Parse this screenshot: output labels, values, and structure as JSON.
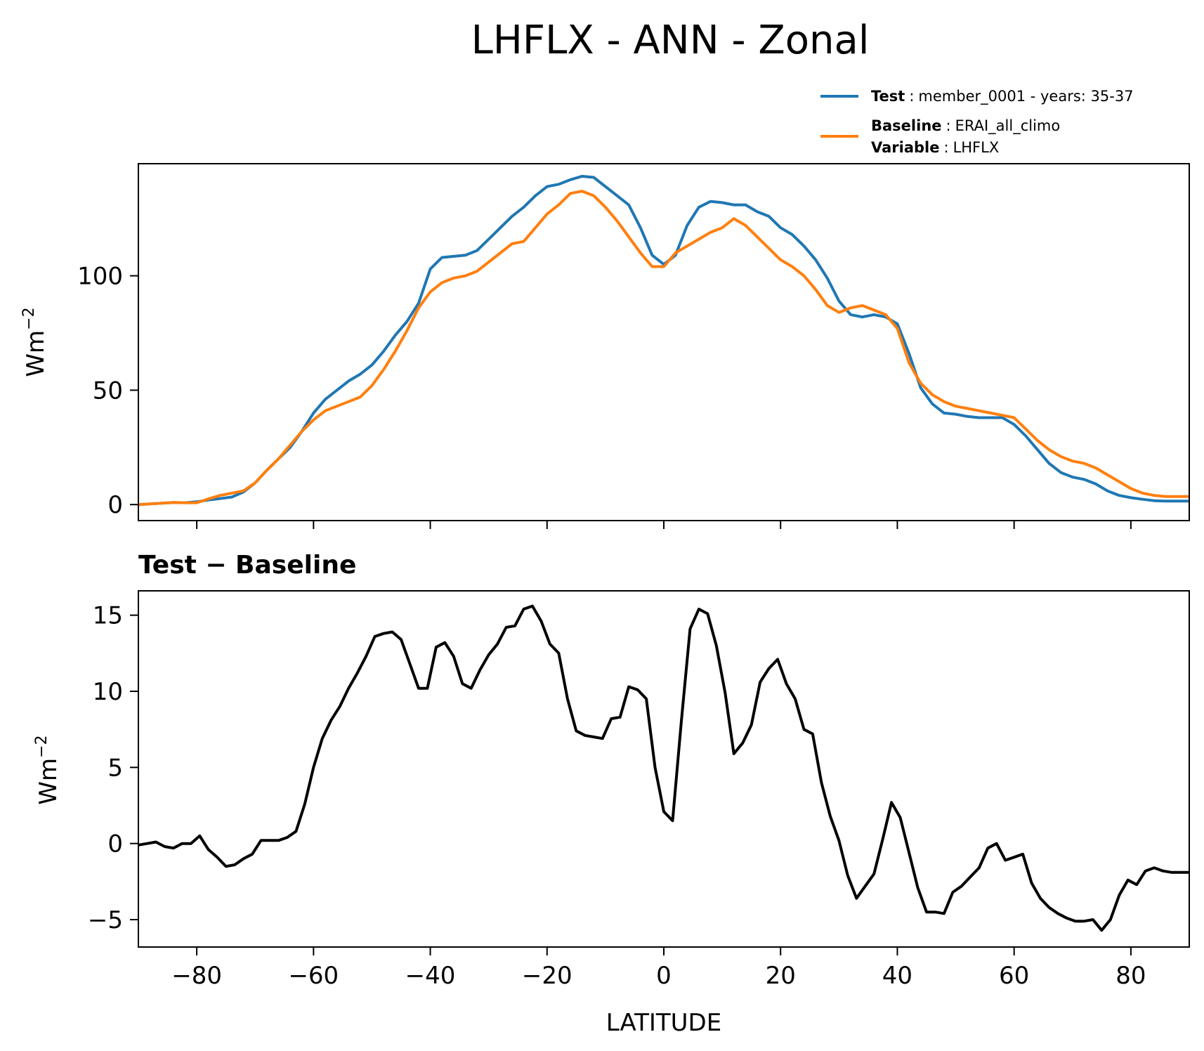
{
  "figure": {
    "title": "LHFLX - ANN - Zonal",
    "xlabel": "LATITUDE",
    "diff_title": "Test − Baseline"
  },
  "legend": {
    "test_key": "Test",
    "test_value": "member_0001 - years: 35-37",
    "baseline_key": "Baseline",
    "baseline_value": "ERAI_all_climo",
    "variable_key": "Variable",
    "variable_value": "LHFLX",
    "separator": ":"
  },
  "colors": {
    "test": "#1f77b4",
    "baseline": "#ff7f0e",
    "diff": "#000000"
  },
  "chart_data": [
    {
      "type": "line",
      "title": "",
      "xlabel": "",
      "ylabel": "Wm⁻²",
      "ylabel_base": "Wm",
      "ylabel_sup": "−2",
      "xlim": [
        -90,
        90
      ],
      "ylim": [
        -7,
        149
      ],
      "xticks": [
        -80,
        -60,
        -40,
        -20,
        0,
        20,
        40,
        60,
        80
      ],
      "xtick_labels_shown": false,
      "yticks": [
        0,
        50,
        100
      ],
      "ytick_labels": [
        "0",
        "50",
        "100"
      ],
      "series": [
        {
          "name": "Test",
          "x": [
            -90,
            -88,
            -86,
            -84,
            -82,
            -80,
            -78,
            -76,
            -74,
            -72,
            -70,
            -68,
            -66,
            -64,
            -62,
            -60,
            -58,
            -56,
            -54,
            -52,
            -50,
            -48,
            -46,
            -44,
            -42,
            -40,
            -38,
            -36,
            -34,
            -32,
            -30,
            -28,
            -26,
            -24,
            -22,
            -20,
            -18,
            -16,
            -14,
            -12,
            -10,
            -8,
            -6,
            -4,
            -2,
            0,
            2,
            4,
            6,
            8,
            10,
            12,
            14,
            16,
            18,
            20,
            22,
            24,
            26,
            28,
            30,
            32,
            34,
            36,
            38,
            40,
            42,
            44,
            46,
            48,
            50,
            52,
            54,
            56,
            58,
            60,
            62,
            64,
            66,
            68,
            70,
            72,
            74,
            76,
            78,
            80,
            82,
            84,
            86,
            88,
            90
          ],
          "values": [
            0,
            0.3,
            0.6,
            0.9,
            0.8,
            1.2,
            2,
            2.6,
            3.3,
            5.5,
            9.5,
            15,
            20,
            25,
            32,
            40,
            46,
            50,
            54,
            57,
            61,
            67,
            74,
            80,
            88,
            103,
            108,
            108.5,
            109,
            111,
            116,
            121,
            126,
            130,
            135,
            139,
            140,
            142,
            143.5,
            143,
            139,
            135,
            131,
            121,
            109,
            105,
            109,
            122,
            130,
            132.5,
            132,
            131,
            131,
            128,
            126,
            121,
            118,
            113,
            107,
            99,
            89,
            83,
            82,
            83,
            82,
            79,
            66,
            51,
            44,
            40,
            39.5,
            38.5,
            38,
            38,
            38,
            35,
            30,
            24,
            18,
            14,
            12,
            11,
            9,
            6,
            4,
            3,
            2.3,
            1.7,
            1.5,
            1.5,
            1.5
          ]
        },
        {
          "name": "Baseline",
          "x": [
            -90,
            -88,
            -86,
            -84,
            -82,
            -80,
            -78,
            -76,
            -74,
            -72,
            -70,
            -68,
            -66,
            -64,
            -62,
            -60,
            -58,
            -56,
            -54,
            -52,
            -50,
            -48,
            -46,
            -44,
            -42,
            -40,
            -38,
            -36,
            -34,
            -32,
            -30,
            -28,
            -26,
            -24,
            -22,
            -20,
            -18,
            -16,
            -14,
            -12,
            -10,
            -8,
            -6,
            -4,
            -2,
            0,
            2,
            4,
            6,
            8,
            10,
            12,
            14,
            16,
            18,
            20,
            22,
            24,
            26,
            28,
            30,
            32,
            34,
            36,
            38,
            40,
            42,
            44,
            46,
            48,
            50,
            52,
            54,
            56,
            58,
            60,
            62,
            64,
            66,
            68,
            70,
            72,
            74,
            76,
            78,
            80,
            82,
            84,
            86,
            88,
            90
          ],
          "values": [
            0,
            0.3,
            0.6,
            0.9,
            0.8,
            0.8,
            2.5,
            4,
            5,
            6,
            9.5,
            15,
            20,
            26,
            32,
            37,
            41,
            43,
            45,
            47,
            52,
            59,
            67,
            76,
            86,
            93,
            97,
            99,
            100,
            102,
            106,
            110,
            114,
            115,
            121,
            127,
            131,
            136,
            137,
            135,
            130,
            124,
            117,
            110,
            104,
            104,
            110,
            113,
            116,
            119,
            121,
            125,
            122,
            117,
            112,
            107,
            104,
            100,
            94,
            87,
            84,
            86,
            87,
            85,
            83,
            77,
            62,
            53,
            48,
            45,
            43,
            42,
            41,
            40,
            39,
            38,
            33,
            28,
            24,
            21,
            19,
            18,
            16,
            13,
            10,
            7,
            5,
            4,
            3.5,
            3.5,
            3.5
          ]
        }
      ]
    },
    {
      "type": "line",
      "title": "Test − Baseline",
      "xlabel": "LATITUDE",
      "ylabel": "Wm⁻²",
      "ylabel_base": "Wm",
      "ylabel_sup": "−2",
      "xlim": [
        -90,
        90
      ],
      "ylim": [
        -6.8,
        16.6
      ],
      "xticks": [
        -80,
        -60,
        -40,
        -20,
        0,
        20,
        40,
        60,
        80
      ],
      "xtick_labels": [
        "−80",
        "−60",
        "−40",
        "−20",
        "0",
        "20",
        "40",
        "60",
        "80"
      ],
      "yticks": [
        -5,
        0,
        5,
        10,
        15
      ],
      "ytick_labels": [
        "−5",
        "0",
        "5",
        "10",
        "15"
      ],
      "series": [
        {
          "name": "Test − Baseline",
          "x": [
            -90,
            -88.5,
            -87,
            -85.5,
            -84,
            -82.5,
            -81,
            -79.5,
            -78,
            -76.5,
            -75,
            -73.5,
            -72,
            -70.5,
            -69,
            -67.5,
            -66,
            -64.5,
            -63,
            -61.5,
            -60,
            -58.5,
            -57,
            -55.5,
            -54,
            -52.5,
            -51,
            -49.5,
            -48,
            -46.5,
            -45,
            -43.5,
            -42,
            -40.5,
            -39,
            -37.5,
            -36,
            -34.5,
            -33,
            -31.5,
            -30,
            -28.5,
            -27,
            -25.5,
            -24,
            -22.5,
            -21,
            -19.5,
            -18,
            -16.5,
            -15,
            -13.5,
            -12,
            -10.5,
            -9,
            -7.5,
            -6,
            -4.5,
            -3,
            -1.5,
            0,
            1.5,
            3,
            4.5,
            6,
            7.5,
            9,
            10.5,
            12,
            13.5,
            15,
            16.5,
            18,
            19.5,
            21,
            22.5,
            24,
            25.5,
            27,
            28.5,
            30,
            31.5,
            33,
            34.5,
            36,
            37.5,
            39,
            40.5,
            42,
            43.5,
            45,
            46.5,
            48,
            49.5,
            51,
            52.5,
            54,
            55.5,
            57,
            58.5,
            60,
            61.5,
            63,
            64.5,
            66,
            67.5,
            69,
            70.5,
            72,
            73.5,
            75,
            76.5,
            78,
            79.5,
            81,
            82.5,
            84,
            85.5,
            87,
            88.5,
            90
          ],
          "values": [
            -0.1,
            0,
            0.1,
            -0.2,
            -0.3,
            0,
            0,
            0.5,
            -0.4,
            -0.9,
            -1.5,
            -1.4,
            -1,
            -0.7,
            0.2,
            0.2,
            0.2,
            0.4,
            0.8,
            2.6,
            5,
            6.9,
            8.1,
            9,
            10.2,
            11.2,
            12.3,
            13.6,
            13.8,
            13.9,
            13.4,
            11.8,
            10.2,
            10.2,
            12.9,
            13.2,
            12.3,
            10.5,
            10.2,
            11.4,
            12.4,
            13.1,
            14.2,
            14.3,
            15.4,
            15.6,
            14.6,
            13.1,
            12.5,
            9.5,
            7.4,
            7.1,
            7,
            6.9,
            8.2,
            8.3,
            10.3,
            10.1,
            9.5,
            5,
            2.1,
            1.5,
            8,
            14.1,
            15.4,
            15.1,
            13,
            9.9,
            5.9,
            6.6,
            7.8,
            10.6,
            11.5,
            12.1,
            10.5,
            9.5,
            7.5,
            7.2,
            4,
            1.8,
            0.2,
            -2.1,
            -3.6,
            -2.8,
            -2,
            0.3,
            2.7,
            1.7,
            -0.6,
            -2.9,
            -4.5,
            -4.5,
            -4.6,
            -3.2,
            -2.8,
            -2.2,
            -1.6,
            -0.3,
            0,
            -1.1,
            -0.9,
            -0.7,
            -2.6,
            -3.6,
            -4.2,
            -4.6,
            -4.9,
            -5.1,
            -5.1,
            -5,
            -5.7,
            -5,
            -3.4,
            -2.4,
            -2.7,
            -1.8,
            -1.6,
            -1.8,
            -1.9,
            -1.9,
            -1.9
          ]
        }
      ]
    }
  ]
}
